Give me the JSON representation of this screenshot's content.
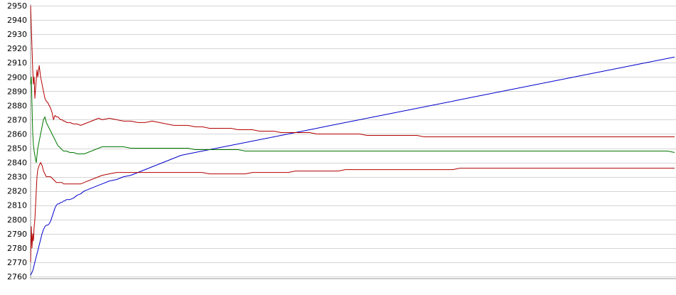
{
  "chart_data": {
    "type": "line",
    "title": "",
    "xlabel": "",
    "ylabel": "",
    "ylim": [
      2760,
      2950
    ],
    "y_ticks": [
      2760,
      2770,
      2780,
      2790,
      2800,
      2810,
      2820,
      2830,
      2840,
      2850,
      2860,
      2870,
      2880,
      2890,
      2900,
      2910,
      2920,
      2930,
      2940,
      2950
    ],
    "grid": true,
    "legend": "none",
    "x": [
      0,
      1,
      2,
      3,
      4,
      5,
      6,
      7,
      8,
      9,
      10,
      12,
      14,
      16,
      18,
      20,
      22,
      24,
      26,
      28,
      30,
      32,
      34,
      36,
      38,
      40,
      42,
      44,
      46,
      48,
      50,
      55,
      60,
      65,
      70,
      75,
      80,
      85,
      90,
      95,
      100,
      110,
      120,
      130,
      140,
      150,
      160,
      170,
      180,
      190,
      200,
      210,
      220,
      230,
      240,
      250,
      260,
      270,
      280,
      290,
      300,
      310,
      320,
      330,
      340,
      350,
      360,
      370,
      380,
      390,
      400,
      410,
      420,
      430,
      440,
      450,
      460,
      470,
      480,
      490,
      500,
      510,
      520,
      530,
      540,
      550,
      560,
      570,
      580,
      590,
      600,
      610,
      620,
      630,
      640,
      650,
      660,
      670,
      680,
      690,
      700,
      710,
      720,
      730,
      740,
      750,
      760,
      770,
      780,
      790,
      800,
      810,
      820,
      830,
      840,
      850,
      860,
      870,
      880,
      890,
      900
    ],
    "series": [
      {
        "color": "#0000cc",
        "values": [
          2761,
          2762,
          2763,
          2764,
          2766,
          2768,
          2770,
          2772,
          2774,
          2776,
          2778,
          2782,
          2786,
          2790,
          2793,
          2795,
          2796,
          2796,
          2797,
          2799,
          2802,
          2805,
          2808,
          2810,
          2811,
          2811,
          2812,
          2812,
          2813,
          2813,
          2814,
          2814,
          2815,
          2817,
          2818,
          2820,
          2821,
          2822,
          2823,
          2824,
          2825,
          2827,
          2828,
          2830,
          2831,
          2833,
          2835,
          2837,
          2839,
          2841,
          2843,
          2845,
          2846,
          2847,
          2848,
          2849,
          2850,
          2851,
          2852,
          2853,
          2854,
          2855,
          2856,
          2857,
          2858,
          2859,
          2860,
          2861,
          2862,
          2863,
          2864,
          2865,
          2866,
          2867,
          2868,
          2869,
          2870,
          2871,
          2872,
          2873,
          2874,
          2875,
          2876,
          2877,
          2878,
          2879,
          2880,
          2881,
          2882,
          2883,
          2884,
          2885,
          2886,
          2887,
          2888,
          2889,
          2890,
          2891,
          2892,
          2893,
          2894,
          2895,
          2896,
          2897,
          2898,
          2899,
          2900,
          2901,
          2902,
          2903,
          2904,
          2905,
          2906,
          2907,
          2908,
          2909,
          2910,
          2911,
          2912,
          2913,
          2914
        ],
        "_note": ""
      },
      {
        "color": "#b30000",
        "values": [
          2950,
          2935,
          2920,
          2905,
          2895,
          2900,
          2885,
          2892,
          2898,
          2905,
          2900,
          2908,
          2900,
          2895,
          2890,
          2885,
          2883,
          2882,
          2880,
          2878,
          2875,
          2870,
          2873,
          2872,
          2872,
          2871,
          2870,
          2870,
          2869,
          2869,
          2868,
          2868,
          2867,
          2867,
          2866,
          2867,
          2868,
          2869,
          2870,
          2871,
          2870,
          2871,
          2870,
          2869,
          2869,
          2868,
          2868,
          2869,
          2868,
          2867,
          2866,
          2866,
          2866,
          2865,
          2865,
          2864,
          2864,
          2864,
          2864,
          2863,
          2863,
          2863,
          2862,
          2862,
          2862,
          2861,
          2861,
          2861,
          2861,
          2861,
          2860,
          2860,
          2860,
          2860,
          2860,
          2860,
          2860,
          2859,
          2859,
          2859,
          2859,
          2859,
          2859,
          2859,
          2859,
          2858,
          2858,
          2858,
          2858,
          2858,
          2858,
          2858,
          2858,
          2858,
          2858,
          2858,
          2858,
          2858,
          2858,
          2858,
          2858,
          2858,
          2858,
          2858,
          2858,
          2858,
          2858,
          2858,
          2858,
          2858,
          2858,
          2858,
          2858,
          2858,
          2858,
          2858,
          2858,
          2858,
          2858,
          2858,
          2858
        ]
      },
      {
        "color": "#007700",
        "values": [
          2895,
          2900,
          2880,
          2860,
          2852,
          2848,
          2845,
          2842,
          2840,
          2845,
          2850,
          2855,
          2860,
          2865,
          2870,
          2872,
          2868,
          2866,
          2864,
          2862,
          2860,
          2858,
          2856,
          2854,
          2852,
          2851,
          2850,
          2849,
          2848,
          2848,
          2848,
          2847,
          2847,
          2846,
          2846,
          2846,
          2847,
          2848,
          2849,
          2850,
          2851,
          2851,
          2851,
          2851,
          2850,
          2850,
          2850,
          2850,
          2850,
          2850,
          2850,
          2850,
          2850,
          2849,
          2849,
          2849,
          2849,
          2849,
          2849,
          2849,
          2848,
          2848,
          2848,
          2848,
          2848,
          2848,
          2848,
          2848,
          2848,
          2848,
          2848,
          2848,
          2848,
          2848,
          2848,
          2848,
          2848,
          2848,
          2848,
          2848,
          2848,
          2848,
          2848,
          2848,
          2848,
          2848,
          2848,
          2848,
          2848,
          2848,
          2848,
          2848,
          2848,
          2848,
          2848,
          2848,
          2848,
          2848,
          2848,
          2848,
          2848,
          2848,
          2848,
          2848,
          2848,
          2848,
          2848,
          2848,
          2848,
          2848,
          2848,
          2848,
          2848,
          2848,
          2848,
          2848,
          2848,
          2848,
          2848,
          2848,
          2847
        ]
      },
      {
        "color": "#b30000",
        "values": [
          2770,
          2795,
          2780,
          2790,
          2785,
          2795,
          2800,
          2810,
          2820,
          2830,
          2835,
          2838,
          2840,
          2838,
          2834,
          2832,
          2830,
          2830,
          2830,
          2830,
          2829,
          2828,
          2827,
          2826,
          2826,
          2826,
          2826,
          2826,
          2825,
          2825,
          2825,
          2825,
          2825,
          2825,
          2825,
          2826,
          2827,
          2828,
          2829,
          2830,
          2831,
          2832,
          2833,
          2833,
          2833,
          2833,
          2833,
          2833,
          2833,
          2833,
          2833,
          2833,
          2833,
          2833,
          2833,
          2832,
          2832,
          2832,
          2832,
          2832,
          2832,
          2833,
          2833,
          2833,
          2833,
          2833,
          2833,
          2834,
          2834,
          2834,
          2834,
          2834,
          2834,
          2834,
          2835,
          2835,
          2835,
          2835,
          2835,
          2835,
          2835,
          2835,
          2835,
          2835,
          2835,
          2835,
          2835,
          2835,
          2835,
          2835,
          2836,
          2836,
          2836,
          2836,
          2836,
          2836,
          2836,
          2836,
          2836,
          2836,
          2836,
          2836,
          2836,
          2836,
          2836,
          2836,
          2836,
          2836,
          2836,
          2836,
          2836,
          2836,
          2836,
          2836,
          2836,
          2836,
          2836,
          2836,
          2836,
          2836,
          2836
        ]
      }
    ]
  }
}
